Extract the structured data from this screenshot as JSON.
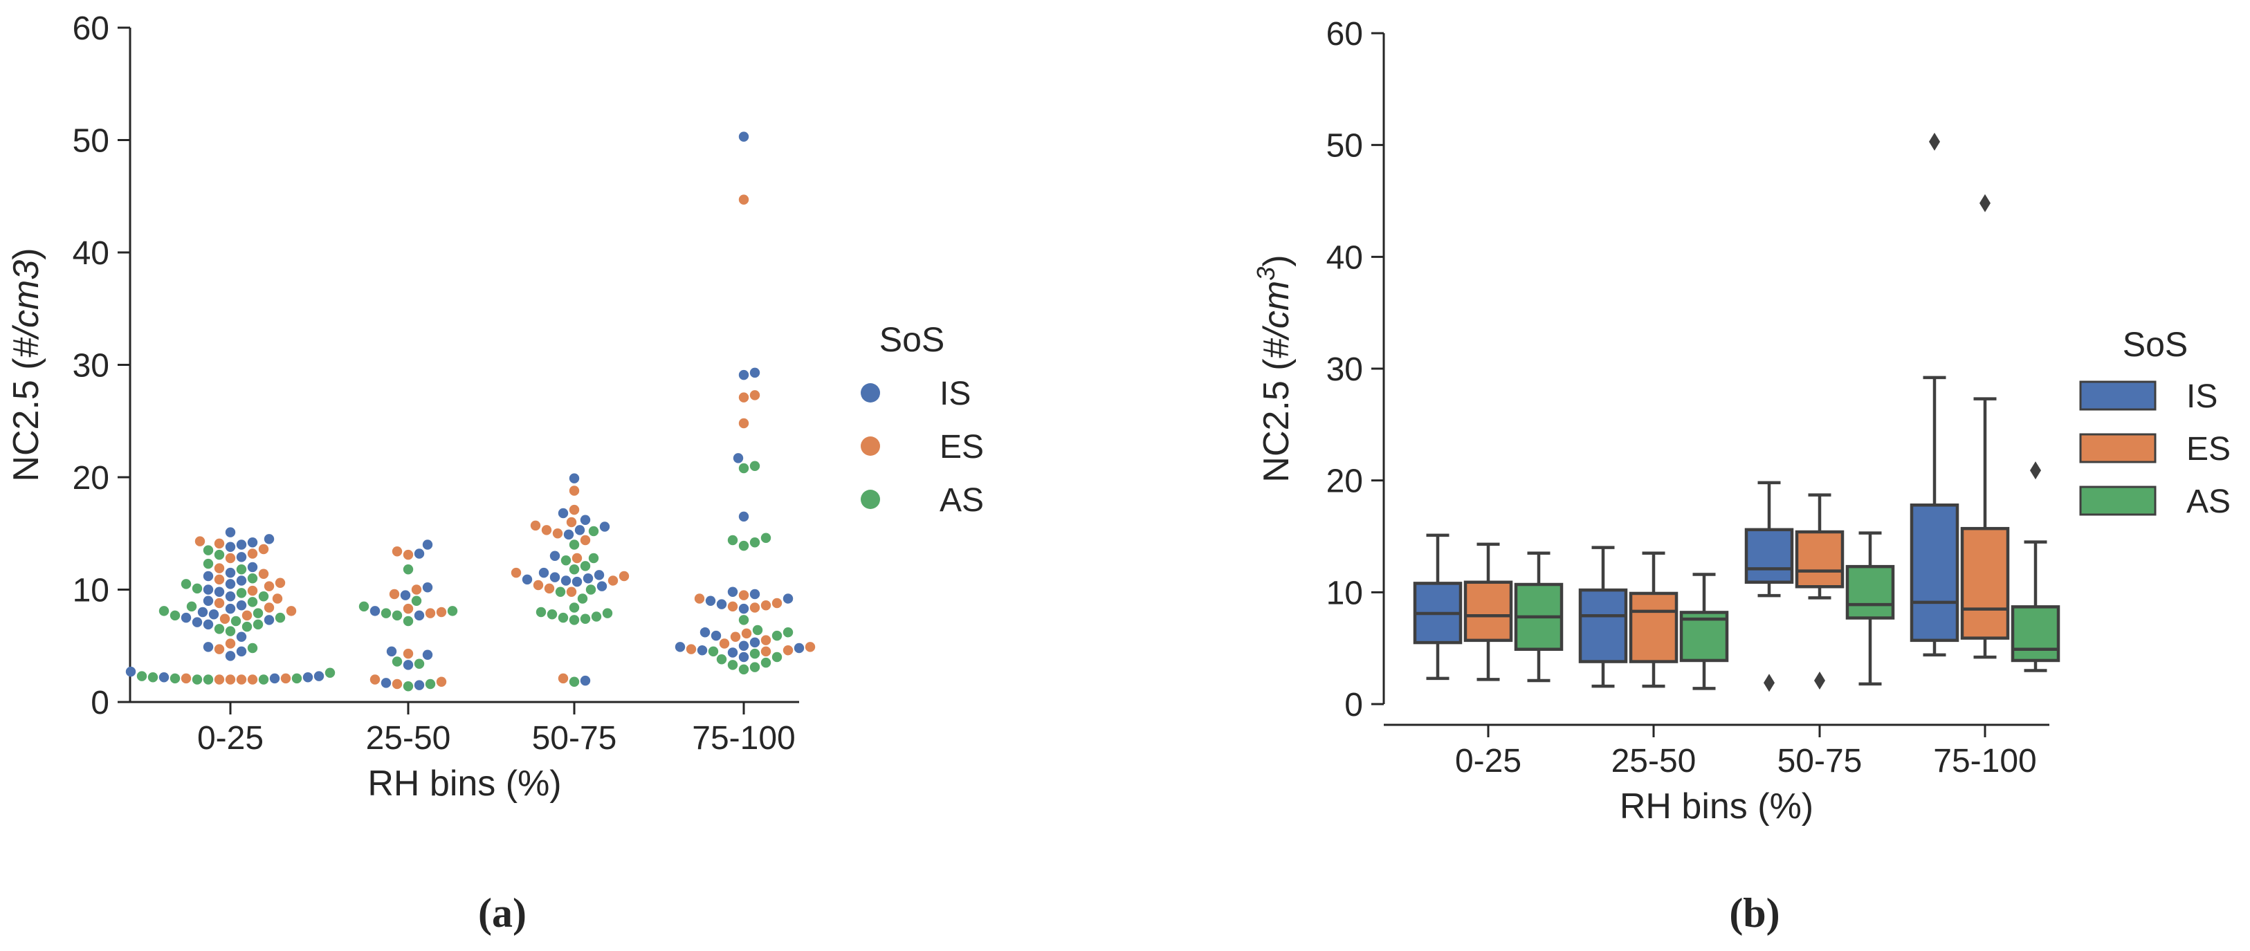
{
  "figure": {
    "captions": [
      "(a)",
      "(b)"
    ]
  },
  "colors": {
    "IS": "#4c72b0",
    "ES": "#dd8452",
    "AS": "#55a868",
    "axis": "#262626",
    "box_edge": "#3f3f3f"
  },
  "chart_data": [
    {
      "type": "scatter",
      "subtype": "swarm",
      "caption": "(a)",
      "title": "",
      "xlabel": "RH bins (%)",
      "ylabel": "NC2.5 (#/cm3)",
      "ylabel_parts": [
        "NC2.5 (",
        "#/",
        "cm3",
        ")"
      ],
      "categories": [
        "0-25",
        "25-50",
        "50-75",
        "75-100"
      ],
      "yticks": [
        "0",
        "10",
        "20",
        "30",
        "40",
        "50",
        "60"
      ],
      "ylim": [
        0,
        60
      ],
      "legend": {
        "title": "SoS",
        "entries": [
          "IS",
          "ES",
          "AS"
        ],
        "placement": "right"
      },
      "series": [
        {
          "name": "IS",
          "values": [
            [
              15.1,
              14.5,
              14.2,
              14.0,
              13.8,
              12.9,
              12.0,
              11.5,
              11.2,
              10.8,
              10.5,
              10.0,
              9.8,
              9.4,
              9.0,
              8.6,
              8.3,
              8.0,
              7.8,
              7.5,
              7.3,
              7.1,
              6.9,
              5.8,
              4.9,
              4.5,
              4.1,
              2.7,
              2.3,
              2.2,
              2.2,
              2.1
            ],
            [
              14.0,
              13.2,
              10.2,
              9.5,
              8.1,
              7.7,
              4.5,
              4.2,
              3.3,
              1.7,
              1.5
            ],
            [
              19.9,
              16.8,
              16.2,
              15.6,
              15.3,
              14.9,
              13.0,
              11.5,
              11.3,
              11.1,
              11.0,
              10.9,
              10.8,
              10.7,
              10.3,
              1.9
            ],
            [
              50.3,
              29.3,
              29.1,
              21.7,
              16.5,
              9.8,
              9.6,
              9.2,
              9.0,
              8.7,
              8.3,
              6.2,
              5.9,
              5.3,
              5.0,
              4.9,
              4.8,
              4.6,
              4.4,
              4.0
            ]
          ]
        },
        {
          "name": "ES",
          "values": [
            [
              14.3,
              14.1,
              13.6,
              13.2,
              12.8,
              11.9,
              11.4,
              10.9,
              10.6,
              10.3,
              9.9,
              9.2,
              8.8,
              8.4,
              8.1,
              7.7,
              7.4,
              5.2,
              4.7,
              2.1,
              2.1,
              2.0,
              2.0,
              2.0,
              2.0
            ],
            [
              13.4,
              13.1,
              10.0,
              9.6,
              8.3,
              8.0,
              7.9,
              4.3,
              2.0,
              1.8,
              1.6
            ],
            [
              18.8,
              17.1,
              16.0,
              15.7,
              15.3,
              15.0,
              14.4,
              12.8,
              11.5,
              11.2,
              10.8,
              10.4,
              10.1,
              9.8,
              2.1
            ],
            [
              44.7,
              27.3,
              27.1,
              24.8,
              9.5,
              9.2,
              8.8,
              8.6,
              8.5,
              8.4,
              6.1,
              5.8,
              5.5,
              5.2,
              4.9,
              4.7,
              4.6,
              4.5
            ]
          ]
        },
        {
          "name": "AS",
          "values": [
            [
              13.5,
              13.1,
              12.3,
              11.8,
              11.0,
              10.5,
              10.1,
              9.7,
              9.4,
              8.9,
              8.5,
              8.1,
              7.9,
              7.7,
              7.5,
              7.2,
              6.9,
              6.7,
              6.5,
              6.3,
              4.8,
              2.6,
              2.3,
              2.2,
              2.1,
              2.1,
              2.0,
              2.0,
              2.0
            ],
            [
              11.8,
              9.0,
              8.5,
              8.1,
              7.9,
              7.7,
              7.2,
              3.6,
              3.4,
              1.6,
              1.4
            ],
            [
              15.2,
              14.0,
              12.8,
              12.6,
              12.1,
              11.8,
              10.0,
              9.8,
              9.2,
              8.4,
              8.0,
              7.9,
              7.8,
              7.6,
              7.5,
              7.4,
              7.3,
              1.8
            ],
            [
              21.0,
              20.8,
              14.6,
              14.4,
              14.2,
              13.9,
              7.3,
              6.4,
              6.2,
              5.9,
              4.5,
              4.3,
              4.0,
              3.8,
              3.5,
              3.3,
              3.1,
              2.9
            ]
          ]
        }
      ]
    },
    {
      "type": "box",
      "caption": "(b)",
      "title": "",
      "xlabel": "RH bins (%)",
      "ylabel": "NC2.5 (#/cm^3)",
      "ylabel_parts": [
        "NC2.5 (",
        "#/",
        "cm",
        "3",
        ")"
      ],
      "categories": [
        "0-25",
        "25-50",
        "50-75",
        "75-100"
      ],
      "yticks": [
        "0",
        "10",
        "20",
        "30",
        "40",
        "50",
        "60"
      ],
      "ylim": [
        0,
        60
      ],
      "legend": {
        "title": "SoS",
        "entries": [
          "IS",
          "ES",
          "AS"
        ],
        "placement": "right"
      },
      "series": [
        {
          "name": "IS",
          "boxes": [
            {
              "min": 2.3,
              "q1": 5.5,
              "median": 8.1,
              "q3": 10.8,
              "max": 15.1,
              "outliers": []
            },
            {
              "min": 1.6,
              "q1": 3.8,
              "median": 7.9,
              "q3": 10.2,
              "max": 14.0,
              "outliers": []
            },
            {
              "min": 9.7,
              "q1": 10.9,
              "median": 12.1,
              "q3": 15.6,
              "max": 19.8,
              "outliers": [
                1.9
              ]
            },
            {
              "min": 4.4,
              "q1": 5.7,
              "median": 9.1,
              "q3": 17.8,
              "max": 29.2,
              "outliers": [
                50.3
              ]
            }
          ]
        },
        {
          "name": "ES",
          "boxes": [
            {
              "min": 2.2,
              "q1": 5.7,
              "median": 7.9,
              "q3": 10.9,
              "max": 14.3,
              "outliers": []
            },
            {
              "min": 1.6,
              "q1": 3.8,
              "median": 8.3,
              "q3": 9.9,
              "max": 13.5,
              "outliers": []
            },
            {
              "min": 9.5,
              "q1": 10.5,
              "median": 11.9,
              "q3": 15.4,
              "max": 18.7,
              "outliers": [
                2.1
              ]
            },
            {
              "min": 4.2,
              "q1": 5.9,
              "median": 8.5,
              "q3": 15.7,
              "max": 27.3,
              "outliers": [
                44.8
              ]
            }
          ]
        },
        {
          "name": "AS",
          "boxes": [
            {
              "min": 2.1,
              "q1": 4.9,
              "median": 7.8,
              "q3": 10.7,
              "max": 13.5,
              "outliers": []
            },
            {
              "min": 1.4,
              "q1": 3.9,
              "median": 7.6,
              "q3": 8.2,
              "max": 11.6,
              "outliers": []
            },
            {
              "min": 1.8,
              "q1": 7.7,
              "median": 8.9,
              "q3": 12.3,
              "max": 15.3,
              "outliers": []
            },
            {
              "min": 3.0,
              "q1": 3.9,
              "median": 4.9,
              "q3": 8.7,
              "max": 14.5,
              "outliers": [
                20.9
              ]
            }
          ]
        }
      ]
    }
  ]
}
